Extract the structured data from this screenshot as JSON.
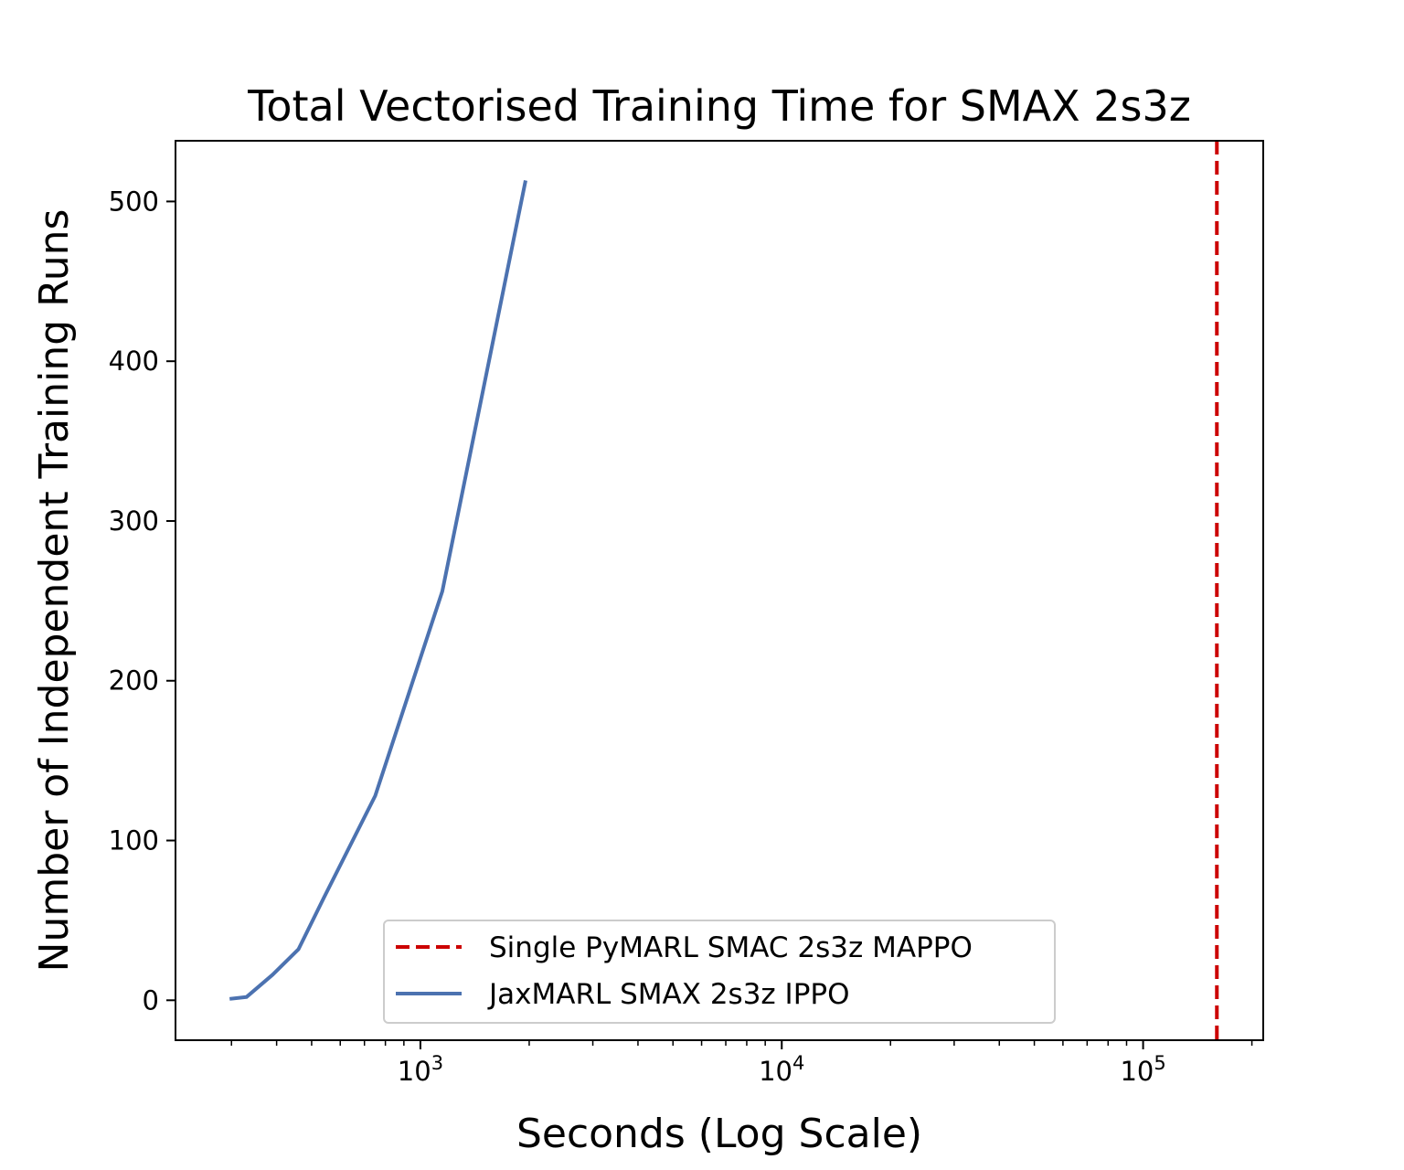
{
  "chart_data": {
    "type": "line",
    "title": "Total Vectorised Training Time for SMAX 2s3z",
    "xlabel": "Seconds (Log Scale)",
    "ylabel": "Number of Independent Training Runs",
    "xscale": "log",
    "xlim": [
      210,
      215000
    ],
    "ylim": [
      -25,
      538
    ],
    "yticks": [
      0,
      100,
      200,
      300,
      400,
      500
    ],
    "xticks": [
      {
        "value": 1000,
        "base": "10",
        "exp": "3"
      },
      {
        "value": 10000,
        "base": "10",
        "exp": "4"
      },
      {
        "value": 100000,
        "base": "10",
        "exp": "5"
      }
    ],
    "legend_position": "lower center",
    "series": [
      {
        "name": "JaxMARL SMAX 2s3z IPPO",
        "style": "solid",
        "color": "#4c72b0",
        "x": [
          300,
          330,
          390,
          460,
          540,
          750,
          1150,
          1950
        ],
        "y": [
          1,
          2,
          16,
          32,
          64,
          128,
          256,
          512
        ]
      }
    ],
    "vlines": [
      {
        "name": "Single PyMARL SMAC 2s3z MAPPO",
        "style": "dashed",
        "color": "#cc0000",
        "x": 160000
      }
    ]
  }
}
